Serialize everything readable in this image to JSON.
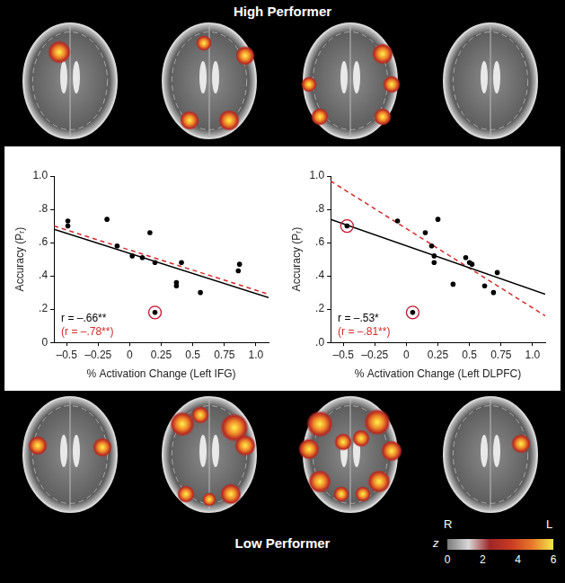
{
  "figure": {
    "top_label": "High Performer",
    "bottom_label": "Low Performer"
  },
  "colorbar": {
    "label": "z",
    "range": [
      0,
      6
    ],
    "ticks": [
      0,
      2,
      4,
      6
    ],
    "colors": [
      "#7a7a7a",
      "#d8d8d8",
      "#9e2626",
      "#c83a22",
      "#e8782a",
      "#f5e84a"
    ],
    "left_label": "R",
    "right_label": "L"
  },
  "chart_data": [
    {
      "type": "scatter",
      "x_label": "% Activation Change (Left IFG)",
      "y_label": "Accuracy (Pᵣ)",
      "xlim": [
        -0.6,
        1.1
      ],
      "xticks": [
        {
          "value": -0.5,
          "label": "–0.5"
        },
        {
          "value": -0.25,
          "label": "–0.25"
        },
        0,
        0.25,
        0.5,
        0.75,
        {
          "value": 1,
          "label": "1.0"
        }
      ],
      "ylim": [
        0,
        1
      ],
      "yticks": [
        0,
        {
          "value": 0.2,
          "label": ".2"
        },
        {
          "value": 0.4,
          "label": ".4"
        },
        {
          "value": 0.6,
          "label": ".6"
        },
        {
          "value": 0.8,
          "label": ".8"
        },
        {
          "value": 1,
          "label": "1.0"
        }
      ],
      "grid": false,
      "annotations": [
        {
          "text": "r = –.66**",
          "color": "#000000"
        },
        {
          "text": "(r = –.78**)",
          "color": "#d42a2a"
        }
      ],
      "series": [
        {
          "type": "scatter",
          "marker": "circle",
          "color": "#000000",
          "x": [
            -0.49,
            -0.49,
            -0.18,
            -0.1,
            0.02,
            0.1,
            0.16,
            0.2,
            0.37,
            0.37,
            0.41,
            0.56,
            0.86,
            0.87
          ],
          "values": [
            0.73,
            0.7,
            0.74,
            0.58,
            0.52,
            0.51,
            0.66,
            0.48,
            0.36,
            0.34,
            0.48,
            0.3,
            0.43,
            0.47
          ]
        },
        {
          "type": "scatter",
          "marker": "circled",
          "color": "#c8102e",
          "x": [
            0.2
          ],
          "values": [
            0.18
          ]
        },
        {
          "type": "line",
          "line_style": "solid",
          "color": "#000000",
          "x": [
            -0.6,
            1.1
          ],
          "values": [
            0.68,
            0.27
          ]
        },
        {
          "type": "line",
          "line_style": "dashed",
          "color": "#d42a2a",
          "x": [
            -0.6,
            1.1
          ],
          "values": [
            0.7,
            0.29
          ]
        }
      ]
    },
    {
      "type": "scatter",
      "x_label": "% Activation Change (Left DLPFC)",
      "y_label": "Accuracy (Pᵣ)",
      "xlim": [
        -0.6,
        1.1
      ],
      "xticks": [
        {
          "value": -0.5,
          "label": "–0.5"
        },
        {
          "value": -0.25,
          "label": "–0.25"
        },
        0,
        0.25,
        0.5,
        0.75,
        {
          "value": 1,
          "label": "1.0"
        }
      ],
      "ylim": [
        0,
        1
      ],
      "yticks": [
        {
          "value": 0,
          "label": ".0"
        },
        {
          "value": 0.2,
          "label": ".2"
        },
        {
          "value": 0.4,
          "label": ".4"
        },
        {
          "value": 0.6,
          "label": ".6"
        },
        {
          "value": 0.8,
          "label": ".8"
        },
        {
          "value": 1,
          "label": "1.0"
        }
      ],
      "grid": false,
      "annotations": [
        {
          "text": "r = –.53*",
          "color": "#000000"
        },
        {
          "text": "(r = –.81**)",
          "color": "#d42a2a"
        }
      ],
      "series": [
        {
          "type": "scatter",
          "marker": "circle",
          "color": "#000000",
          "x": [
            -0.07,
            0.15,
            0.2,
            0.22,
            0.22,
            0.25,
            0.37,
            0.47,
            0.5,
            0.52,
            0.62,
            0.69,
            0.72
          ],
          "values": [
            0.73,
            0.66,
            0.58,
            0.52,
            0.48,
            0.74,
            0.35,
            0.51,
            0.48,
            0.47,
            0.34,
            0.3,
            0.42
          ]
        },
        {
          "type": "scatter",
          "marker": "circled",
          "color": "#c8102e",
          "x": [
            -0.47,
            0.05
          ],
          "values": [
            0.7,
            0.18
          ]
        },
        {
          "type": "line",
          "line_style": "solid",
          "color": "#000000",
          "x": [
            -0.6,
            1.1
          ],
          "values": [
            0.74,
            0.29
          ]
        },
        {
          "type": "line",
          "line_style": "dashed",
          "color": "#d42a2a",
          "x": [
            -0.6,
            1.1
          ],
          "values": [
            0.97,
            0.16
          ]
        }
      ]
    }
  ]
}
